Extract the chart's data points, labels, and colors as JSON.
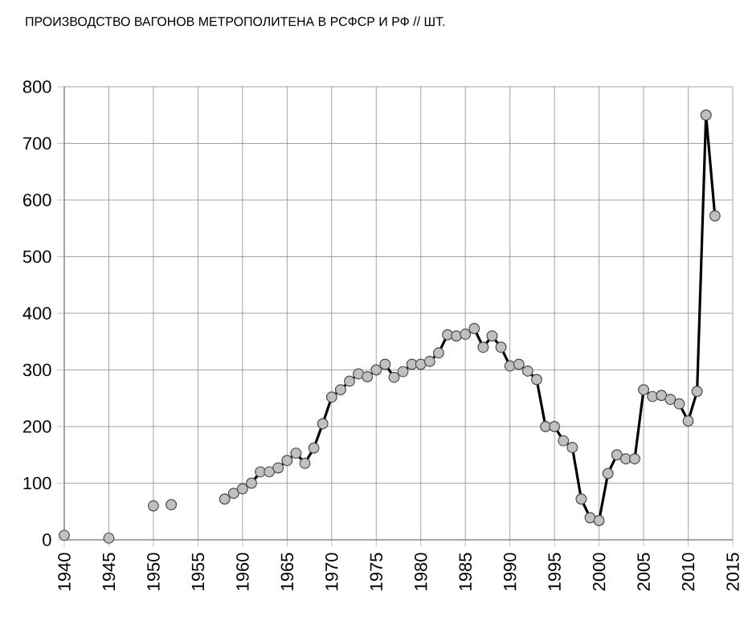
{
  "chart_data": {
    "type": "line",
    "title": "ПРОИЗВОДСТВО ВАГОНОВ МЕТРОПОЛИТЕНА В РСФСР И РФ // ШТ.",
    "series": [
      {
        "color": "#c0c0c0",
        "x": [
          1940,
          1943,
          1945,
          1948,
          1950,
          1951,
          1952,
          1955,
          1958,
          1959,
          1960,
          1961,
          1962,
          1963,
          1964,
          1965,
          1966,
          1967,
          1968,
          1969,
          1970,
          1971,
          1972,
          1973,
          1974,
          1975,
          1976,
          1977,
          1978,
          1979,
          1980,
          1981,
          1982,
          1983,
          1984,
          1985,
          1986,
          1987,
          1988,
          1989,
          1990,
          1991,
          1992,
          1993,
          1994,
          1995,
          1996,
          1997,
          1998,
          1999,
          2000,
          2001,
          2002,
          2003,
          2004,
          2005,
          2006,
          2007,
          2008,
          2009,
          2010,
          2011,
          2012,
          2013
        ],
        "values": [
          8,
          null,
          3,
          null,
          60,
          null,
          62,
          null,
          72,
          82,
          90,
          100,
          120,
          120,
          127,
          140,
          153,
          135,
          162,
          205,
          252,
          265,
          280,
          293,
          288,
          300,
          310,
          287,
          297,
          310,
          310,
          315,
          330,
          362,
          360,
          363,
          373,
          340,
          360,
          340,
          307,
          310,
          298,
          283,
          200,
          200,
          175,
          163,
          72,
          39,
          34,
          117,
          150,
          143,
          143,
          265,
          253,
          255,
          248,
          240,
          210,
          262,
          750,
          572
        ]
      }
    ],
    "xlim": [
      1940,
      2015
    ],
    "xticks": [
      1940,
      1945,
      1950,
      1955,
      1960,
      1965,
      1970,
      1975,
      1980,
      1985,
      1990,
      1995,
      2000,
      2005,
      2010,
      2015
    ],
    "ylim": [
      0,
      800
    ],
    "yticks": [
      0,
      100,
      200,
      300,
      400,
      500,
      600,
      700,
      800
    ],
    "grid": true,
    "marker": "circle",
    "line_style": "solid"
  }
}
